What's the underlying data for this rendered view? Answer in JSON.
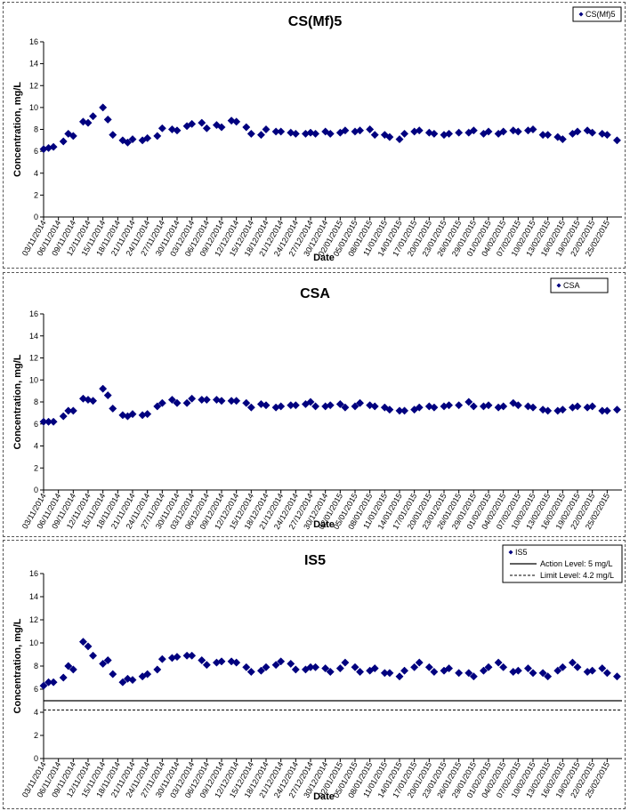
{
  "chart_data": [
    {
      "type": "scatter",
      "title": "CS(Mf)5",
      "xlabel": "Date",
      "ylabel": "Concentration, mg/L",
      "ylim": [
        0,
        16
      ],
      "yticks": [
        "0",
        "2",
        "4",
        "6",
        "8",
        "10",
        "12",
        "14",
        "16"
      ],
      "grid": false,
      "legend_position": "top-right",
      "marker_color": "#00007f",
      "date_ticks": [
        "03/11/2014",
        "06/11/2014",
        "09/11/2014",
        "12/11/2014",
        "15/11/2014",
        "18/11/2014",
        "21/11/2014",
        "24/11/2014",
        "27/11/2014",
        "30/11/2014",
        "03/12/2014",
        "06/12/2014",
        "09/12/2014",
        "12/12/2014",
        "15/12/2014",
        "18/12/2014",
        "21/12/2014",
        "24/12/2014",
        "27/12/2014",
        "30/12/2014",
        "02/01/2015",
        "05/01/2015",
        "08/01/2015",
        "11/01/2015",
        "14/01/2015",
        "17/01/2015",
        "20/01/2015",
        "23/01/2015",
        "26/01/2015",
        "29/01/2015",
        "01/02/2015",
        "04/02/2015",
        "07/02/2015",
        "10/02/2015",
        "13/02/2015",
        "16/02/2015",
        "19/02/2015",
        "22/02/2015",
        "25/02/2015"
      ],
      "series": [
        {
          "name": "CS(Mf)5",
          "kind": "points",
          "x": [
            "03/11/2014",
            "04/11/2014",
            "05/11/2014",
            "07/11/2014",
            "08/11/2014",
            "09/11/2014",
            "11/11/2014",
            "12/11/2014",
            "13/11/2014",
            "15/11/2014",
            "16/11/2014",
            "17/11/2014",
            "19/11/2014",
            "20/11/2014",
            "21/11/2014",
            "23/11/2014",
            "24/11/2014",
            "26/11/2014",
            "27/11/2014",
            "29/11/2014",
            "30/11/2014",
            "02/12/2014",
            "03/12/2014",
            "05/12/2014",
            "06/12/2014",
            "08/12/2014",
            "09/12/2014",
            "11/12/2014",
            "12/12/2014",
            "14/12/2014",
            "15/12/2014",
            "17/12/2014",
            "18/12/2014",
            "20/12/2014",
            "21/12/2014",
            "23/12/2014",
            "24/12/2014",
            "26/12/2014",
            "27/12/2014",
            "28/12/2014",
            "30/12/2014",
            "31/12/2014",
            "02/01/2015",
            "03/01/2015",
            "05/01/2015",
            "06/01/2015",
            "08/01/2015",
            "09/01/2015",
            "11/01/2015",
            "12/01/2015",
            "14/01/2015",
            "15/01/2015",
            "17/01/2015",
            "18/01/2015",
            "20/01/2015",
            "21/01/2015",
            "23/01/2015",
            "24/01/2015",
            "26/01/2015",
            "28/01/2015",
            "29/01/2015",
            "31/01/2015",
            "01/02/2015",
            "03/02/2015",
            "04/02/2015",
            "06/02/2015",
            "07/02/2015",
            "09/02/2015",
            "10/02/2015",
            "12/02/2015",
            "13/02/2015",
            "15/02/2015",
            "16/02/2015",
            "18/02/2015",
            "19/02/2015",
            "21/02/2015",
            "22/02/2015",
            "24/02/2015",
            "25/02/2015",
            "27/02/2015"
          ],
          "y": [
            6.2,
            6.3,
            6.4,
            6.9,
            7.6,
            7.4,
            8.7,
            8.6,
            9.2,
            10.0,
            8.9,
            7.5,
            7.0,
            6.8,
            7.1,
            7.0,
            7.2,
            7.4,
            8.1,
            8.0,
            7.9,
            8.3,
            8.5,
            8.6,
            8.1,
            8.4,
            8.2,
            8.8,
            8.7,
            8.2,
            7.6,
            7.5,
            8.0,
            7.8,
            7.8,
            7.7,
            7.6,
            7.6,
            7.7,
            7.6,
            7.8,
            7.6,
            7.7,
            7.9,
            7.8,
            7.9,
            8.0,
            7.5,
            7.5,
            7.3,
            7.1,
            7.6,
            7.8,
            7.9,
            7.7,
            7.6,
            7.5,
            7.6,
            7.7,
            7.7,
            7.9,
            7.6,
            7.8,
            7.6,
            7.8,
            7.9,
            7.8,
            7.9,
            8.0,
            7.5,
            7.5,
            7.3,
            7.1,
            7.6,
            7.8,
            7.9,
            7.7,
            7.6,
            7.5,
            7.0
          ]
        }
      ]
    },
    {
      "type": "scatter",
      "title": "CSA",
      "xlabel": "Date",
      "ylabel": "Concentration, mg/L",
      "ylim": [
        0,
        16
      ],
      "yticks": [
        "0",
        "2",
        "4",
        "6",
        "8",
        "10",
        "12",
        "14",
        "16"
      ],
      "grid": false,
      "legend_position": "top-right",
      "marker_color": "#00007f",
      "date_ticks": [
        "03/11/2014",
        "06/11/2014",
        "09/11/2014",
        "12/11/2014",
        "15/11/2014",
        "18/11/2014",
        "21/11/2014",
        "24/11/2014",
        "27/11/2014",
        "30/11/2014",
        "03/12/2014",
        "06/12/2014",
        "09/12/2014",
        "12/12/2014",
        "15/12/2014",
        "18/12/2014",
        "21/12/2014",
        "24/12/2014",
        "27/12/2014",
        "30/12/2014",
        "02/01/2015",
        "05/01/2015",
        "08/01/2015",
        "11/01/2015",
        "14/01/2015",
        "17/01/2015",
        "20/01/2015",
        "23/01/2015",
        "26/01/2015",
        "29/01/2015",
        "01/02/2015",
        "04/02/2015",
        "07/02/2015",
        "10/02/2015",
        "13/02/2015",
        "16/02/2015",
        "19/02/2015",
        "22/02/2015",
        "25/02/2015"
      ],
      "series": [
        {
          "name": "CSA",
          "kind": "points",
          "x": [
            "03/11/2014",
            "04/11/2014",
            "05/11/2014",
            "07/11/2014",
            "08/11/2014",
            "09/11/2014",
            "11/11/2014",
            "12/11/2014",
            "13/11/2014",
            "15/11/2014",
            "16/11/2014",
            "17/11/2014",
            "19/11/2014",
            "20/11/2014",
            "21/11/2014",
            "23/11/2014",
            "24/11/2014",
            "26/11/2014",
            "27/11/2014",
            "29/11/2014",
            "30/11/2014",
            "02/12/2014",
            "03/12/2014",
            "05/12/2014",
            "06/12/2014",
            "08/12/2014",
            "09/12/2014",
            "11/12/2014",
            "12/12/2014",
            "14/12/2014",
            "15/12/2014",
            "17/12/2014",
            "18/12/2014",
            "20/12/2014",
            "21/12/2014",
            "23/12/2014",
            "24/12/2014",
            "26/12/2014",
            "27/12/2014",
            "28/12/2014",
            "30/12/2014",
            "31/12/2014",
            "02/01/2015",
            "03/01/2015",
            "05/01/2015",
            "06/01/2015",
            "08/01/2015",
            "09/01/2015",
            "11/01/2015",
            "12/01/2015",
            "14/01/2015",
            "15/01/2015",
            "17/01/2015",
            "18/01/2015",
            "20/01/2015",
            "21/01/2015",
            "23/01/2015",
            "24/01/2015",
            "26/01/2015",
            "28/01/2015",
            "29/01/2015",
            "31/01/2015",
            "01/02/2015",
            "03/02/2015",
            "04/02/2015",
            "06/02/2015",
            "07/02/2015",
            "09/02/2015",
            "10/02/2015",
            "12/02/2015",
            "13/02/2015",
            "15/02/2015",
            "16/02/2015",
            "18/02/2015",
            "19/02/2015",
            "21/02/2015",
            "22/02/2015",
            "24/02/2015",
            "25/02/2015",
            "27/02/2015"
          ],
          "y": [
            6.2,
            6.2,
            6.2,
            6.7,
            7.2,
            7.2,
            8.3,
            8.2,
            8.1,
            9.2,
            8.6,
            7.4,
            6.8,
            6.7,
            6.9,
            6.8,
            6.9,
            7.6,
            7.9,
            8.2,
            7.9,
            7.9,
            8.3,
            8.2,
            8.2,
            8.2,
            8.1,
            8.1,
            8.1,
            7.9,
            7.5,
            7.8,
            7.7,
            7.5,
            7.6,
            7.7,
            7.7,
            7.8,
            8.0,
            7.6,
            7.6,
            7.7,
            7.8,
            7.5,
            7.6,
            7.9,
            7.7,
            7.6,
            7.5,
            7.3,
            7.2,
            7.2,
            7.3,
            7.5,
            7.6,
            7.5,
            7.6,
            7.7,
            7.7,
            8.0,
            7.6,
            7.6,
            7.7,
            7.5,
            7.6,
            7.9,
            7.7,
            7.6,
            7.5,
            7.3,
            7.2,
            7.2,
            7.3,
            7.5,
            7.6,
            7.5,
            7.6,
            7.2,
            7.2,
            7.3
          ]
        }
      ]
    },
    {
      "type": "scatter",
      "title": "IS5",
      "xlabel": "Date",
      "ylabel": "Concentration, mg/L",
      "ylim": [
        0,
        16
      ],
      "yticks": [
        "0",
        "2",
        "4",
        "6",
        "8",
        "10",
        "12",
        "14",
        "16"
      ],
      "grid": false,
      "legend_position": "top-right",
      "marker_color": "#00007f",
      "date_ticks": [
        "03/11/2014",
        "06/11/2014",
        "09/11/2014",
        "12/11/2014",
        "15/11/2014",
        "18/11/2014",
        "21/11/2014",
        "24/11/2014",
        "27/11/2014",
        "30/11/2014",
        "03/12/2014",
        "06/12/2014",
        "09/12/2014",
        "12/12/2014",
        "15/12/2014",
        "18/12/2014",
        "21/12/2014",
        "24/12/2014",
        "27/12/2014",
        "30/12/2014",
        "02/01/2015",
        "05/01/2015",
        "08/01/2015",
        "11/01/2015",
        "14/01/2015",
        "17/01/2015",
        "20/01/2015",
        "23/01/2015",
        "26/01/2015",
        "29/01/2015",
        "01/02/2015",
        "04/02/2015",
        "07/02/2015",
        "10/02/2015",
        "13/02/2015",
        "16/02/2015",
        "19/02/2015",
        "22/02/2015",
        "25/02/2015"
      ],
      "series": [
        {
          "name": "IS5",
          "kind": "points",
          "x": [
            "03/11/2014",
            "04/11/2014",
            "05/11/2014",
            "07/11/2014",
            "08/11/2014",
            "09/11/2014",
            "11/11/2014",
            "12/11/2014",
            "13/11/2014",
            "15/11/2014",
            "16/11/2014",
            "17/11/2014",
            "19/11/2014",
            "20/11/2014",
            "21/11/2014",
            "23/11/2014",
            "24/11/2014",
            "26/11/2014",
            "27/11/2014",
            "29/11/2014",
            "30/11/2014",
            "02/12/2014",
            "03/12/2014",
            "05/12/2014",
            "06/12/2014",
            "08/12/2014",
            "09/12/2014",
            "11/12/2014",
            "12/12/2014",
            "14/12/2014",
            "15/12/2014",
            "17/12/2014",
            "18/12/2014",
            "20/12/2014",
            "21/12/2014",
            "23/12/2014",
            "24/12/2014",
            "26/12/2014",
            "27/12/2014",
            "28/12/2014",
            "30/12/2014",
            "31/12/2014",
            "02/01/2015",
            "03/01/2015",
            "05/01/2015",
            "06/01/2015",
            "08/01/2015",
            "09/01/2015",
            "11/01/2015",
            "12/01/2015",
            "14/01/2015",
            "15/01/2015",
            "17/01/2015",
            "18/01/2015",
            "20/01/2015",
            "21/01/2015",
            "23/01/2015",
            "24/01/2015",
            "26/01/2015",
            "28/01/2015",
            "29/01/2015",
            "31/01/2015",
            "01/02/2015",
            "03/02/2015",
            "04/02/2015",
            "06/02/2015",
            "07/02/2015",
            "09/02/2015",
            "10/02/2015",
            "12/02/2015",
            "13/02/2015",
            "15/02/2015",
            "16/02/2015",
            "18/02/2015",
            "19/02/2015",
            "21/02/2015",
            "22/02/2015",
            "24/02/2015",
            "25/02/2015",
            "27/02/2015"
          ],
          "y": [
            6.3,
            6.6,
            6.6,
            7.0,
            8.0,
            7.7,
            10.1,
            9.7,
            8.9,
            8.2,
            8.5,
            7.3,
            6.6,
            6.9,
            6.8,
            7.1,
            7.3,
            7.7,
            8.6,
            8.7,
            8.8,
            8.9,
            8.9,
            8.5,
            8.1,
            8.3,
            8.4,
            8.4,
            8.3,
            7.9,
            7.5,
            7.6,
            7.9,
            8.1,
            8.4,
            8.2,
            7.7,
            7.7,
            7.9,
            7.9,
            7.8,
            7.5,
            7.8,
            8.3,
            7.9,
            7.5,
            7.6,
            7.8,
            7.4,
            7.4,
            7.1,
            7.6,
            7.9,
            8.3,
            7.9,
            7.5,
            7.6,
            7.8,
            7.4,
            7.4,
            7.1,
            7.6,
            7.9,
            8.3,
            7.9,
            7.5,
            7.6,
            7.8,
            7.4,
            7.4,
            7.1,
            7.6,
            7.9,
            8.3,
            7.9,
            7.5,
            7.6,
            7.8,
            7.4,
            7.1
          ]
        },
        {
          "name": "Action Level: 5 mg/L",
          "kind": "hline",
          "y": 5,
          "style": "solid"
        },
        {
          "name": "Limit Level: 4.2 mg/L",
          "kind": "hline",
          "y": 4.2,
          "style": "dashed"
        }
      ]
    }
  ]
}
